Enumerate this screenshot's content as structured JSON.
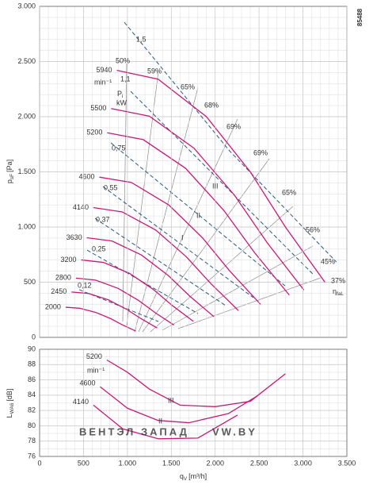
{
  "chart_data": [
    {
      "type": "line",
      "y_label": {
        "symbol": "p",
        "sub": "sF",
        "unit": "[Pa]"
      },
      "xlim": [
        0,
        3500
      ],
      "ylim": [
        0,
        3000
      ],
      "yticks": [
        0,
        500,
        {
          "value": 1000,
          "label": "1.000"
        },
        {
          "value": 1500,
          "label": "1.500"
        },
        {
          "value": 2000,
          "label": "2.000"
        },
        {
          "value": 2500,
          "label": "2.500"
        },
        {
          "value": 3000,
          "label": "3.000"
        }
      ],
      "grid": true,
      "speed_unit": "min⁻¹",
      "power_label": {
        "symbol": "P",
        "sub": "i",
        "unit": "kW"
      },
      "efficiency_label": {
        "symbol": "η",
        "sub": "faL"
      },
      "drawing_number": "85488",
      "series": [
        {
          "name": "5940",
          "color": "#c8197a",
          "x": [
            880,
            1350,
            1900,
            2400,
            2800,
            3250
          ],
          "values": [
            2420,
            2340,
            2000,
            1500,
            1000,
            500
          ]
        },
        {
          "name": "5500",
          "color": "#c8197a",
          "x": [
            815,
            1250,
            1759,
            2222,
            2593,
            3010
          ],
          "values": [
            2074,
            2005,
            1714,
            1286,
            857,
            429
          ]
        },
        {
          "name": "5200",
          "color": "#c8197a",
          "x": [
            770,
            1181,
            1663,
            2100,
            2450,
            2844
          ],
          "values": [
            1854,
            1792,
            1532,
            1149,
            766,
            383
          ]
        },
        {
          "name": "4600",
          "color": "#c8197a",
          "x": [
            681,
            1045,
            1471,
            1858,
            2167,
            2516
          ],
          "values": [
            1452,
            1404,
            1200,
            900,
            600,
            300
          ]
        },
        {
          "name": "4140",
          "color": "#c8197a",
          "x": [
            613,
            941,
            1324,
            1673,
            1952,
            2265
          ],
          "values": [
            1176,
            1137,
            972,
            729,
            486,
            243
          ]
        },
        {
          "name": "3630",
          "color": "#c8197a",
          "x": [
            538,
            825,
            1161,
            1466,
            1711,
            1986
          ],
          "values": [
            903,
            873,
            746,
            560,
            373,
            187
          ]
        },
        {
          "name": "3200",
          "color": "#c8197a",
          "x": [
            474,
            728,
            1024,
            1294,
            1509,
            1752
          ],
          "values": [
            702,
            679,
            580,
            435,
            290,
            145
          ]
        },
        {
          "name": "2800",
          "color": "#c8197a",
          "x": [
            414,
            636,
            895,
            1130,
            1319,
            1531
          ],
          "values": [
            537,
            519,
            444,
            333,
            222,
            111
          ]
        },
        {
          "name": "2450",
          "color": "#c8197a",
          "x": [
            363,
            556,
            783,
            989,
            1154,
            1339
          ],
          "values": [
            411,
            398,
            340,
            255,
            170,
            85
          ]
        },
        {
          "name": "2000",
          "color": "#c8197a",
          "x": [
            297,
            455,
            640,
            809,
            944,
            1095
          ],
          "values": [
            273,
            264,
            226,
            170,
            113,
            57
          ]
        }
      ],
      "power_lines": [
        {
          "name": "1,5",
          "color": "#2a5a7a",
          "x": [
            965,
            2164,
            3381
          ],
          "values": [
            2856,
            1690,
            683
          ]
        },
        {
          "name": "1,1",
          "color": "#2a5a7a",
          "x": [
            1037,
            3111
          ],
          "values": [
            2230,
            575
          ]
        },
        {
          "name": "0,75",
          "color": "#2a5a7a",
          "x": [
            812,
            2795
          ],
          "values": [
            1763,
            468
          ]
        },
        {
          "name": "0,55",
          "color": "#2a5a7a",
          "x": [
            721,
            2435
          ],
          "values": [
            1367,
            360
          ]
        },
        {
          "name": "0,37",
          "color": "#2a5a7a",
          "x": [
            631,
            2119
          ],
          "values": [
            1079,
            288
          ]
        },
        {
          "name": "0,25",
          "color": "#2a5a7a",
          "x": [
            541,
            1803
          ],
          "values": [
            791,
            216
          ]
        },
        {
          "name": "0,12",
          "color": "#2a5a7a",
          "x": [
            451,
            1353
          ],
          "values": [
            432,
            144
          ]
        }
      ],
      "efficiency_labels": [
        "50%",
        "59%",
        "65%",
        "68%",
        "69%",
        "69%",
        "65%",
        "56%",
        "45%",
        "37%"
      ],
      "zones": [
        "III",
        "II",
        "I"
      ]
    },
    {
      "type": "line",
      "y_label": {
        "symbol": "L",
        "sub": "WA6",
        "unit": "[dB]"
      },
      "x_label": {
        "symbol": "q",
        "sub": "V",
        "unit": "[m³/h]"
      },
      "xlim": [
        0,
        3500
      ],
      "xticks": [
        0,
        500,
        {
          "value": 1000,
          "label": "1.000"
        },
        {
          "value": 1500,
          "label": "1.500"
        },
        {
          "value": 2000,
          "label": "2.000"
        },
        {
          "value": 2500,
          "label": "2.500"
        },
        {
          "value": 3000,
          "label": "3.000"
        },
        {
          "value": 3500,
          "label": "3.500"
        }
      ],
      "ylim": [
        76,
        90
      ],
      "yticks": [
        76,
        78,
        80,
        82,
        84,
        86,
        88,
        90
      ],
      "grid": true,
      "speed_unit": "min⁻¹",
      "series": [
        {
          "name": "5200",
          "color": "#c8197a",
          "x": [
            766,
            1000,
            1250,
            1600,
            2000,
            2400,
            2800
          ],
          "values": [
            88.6,
            87,
            84.8,
            82.7,
            82.5,
            83.2,
            86.8
          ]
        },
        {
          "name": "4600",
          "color": "#c8197a",
          "x": [
            690,
            1000,
            1350,
            1700,
            2150,
            2480
          ],
          "values": [
            85.1,
            82.3,
            80.7,
            80.4,
            81.6,
            83.9
          ]
        },
        {
          "name": "4140",
          "color": "#c8197a",
          "x": [
            613,
            947,
            1353,
            1803,
            2254
          ],
          "values": [
            82.7,
            79.6,
            78.3,
            78.4,
            81.4
          ]
        }
      ],
      "zones": [
        "III",
        "II"
      ],
      "watermark": [
        "ВЕНТЭЛ",
        "ЗАПАД",
        "VW.BY"
      ]
    }
  ]
}
